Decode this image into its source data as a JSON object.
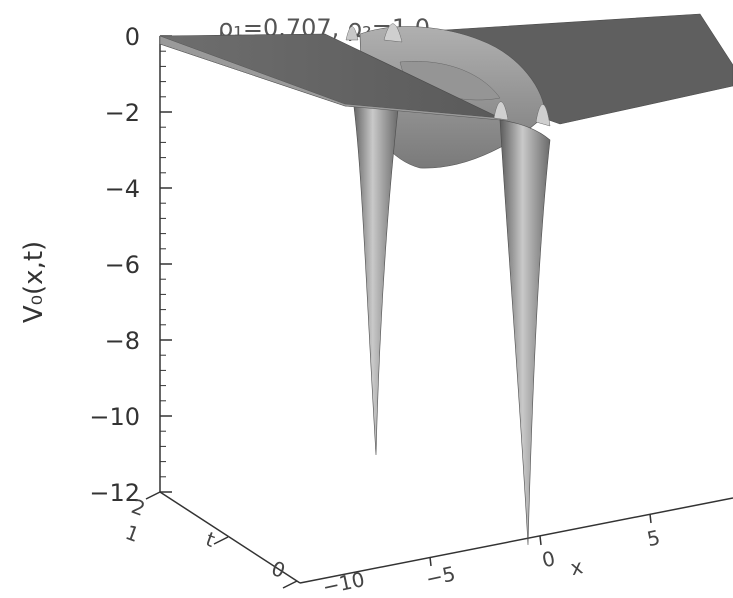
{
  "chart_data": {
    "type": "surface",
    "title": "ρ₁=0.707, ρ₂=1.0",
    "zlabel": "V₀(x,t)",
    "zlim": [
      -12,
      0
    ],
    "z_ticks": [
      "0",
      "−2",
      "−4",
      "−6",
      "−8",
      "−10",
      "−12"
    ],
    "x_axis_label": "x",
    "x_ticks": [
      "−10",
      "−5",
      "0",
      "5"
    ],
    "t_axis_label": "t",
    "t_ticks": [
      "0",
      "1",
      "2"
    ],
    "grid": false,
    "surface_color": "#8c8c8c"
  }
}
